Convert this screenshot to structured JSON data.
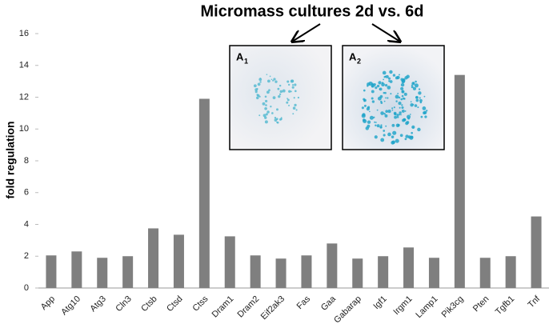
{
  "chart_data": {
    "type": "bar",
    "title": "Micromass cultures 2d vs. 6d",
    "y_label": "fold regulation",
    "categories": [
      "App",
      "Atg10",
      "Atg3",
      "Cln3",
      "Ctsb",
      "Ctsd",
      "Ctss",
      "Dram1",
      "Dram2",
      "Eif2ak3",
      "Fas",
      "Gaa",
      "Gabarap",
      "Igf1",
      "Irgm1",
      "Lamp1",
      "Pik3cg",
      "Pten",
      "Tgfb1",
      "Tnf"
    ],
    "values": [
      2.05,
      2.3,
      1.9,
      2.0,
      3.75,
      3.35,
      11.9,
      3.25,
      2.05,
      1.85,
      2.05,
      2.8,
      1.85,
      2.0,
      2.55,
      1.9,
      13.4,
      1.9,
      2.0,
      4.5
    ],
    "color": "#7f7f7f",
    "ylim": [
      0,
      16
    ],
    "yticks": [
      0,
      2,
      4,
      6,
      8,
      10,
      12,
      14,
      16
    ],
    "grid": false,
    "insets": [
      {
        "label": "A",
        "subscript": "1"
      },
      {
        "label": "A",
        "subscript": "2"
      }
    ]
  }
}
